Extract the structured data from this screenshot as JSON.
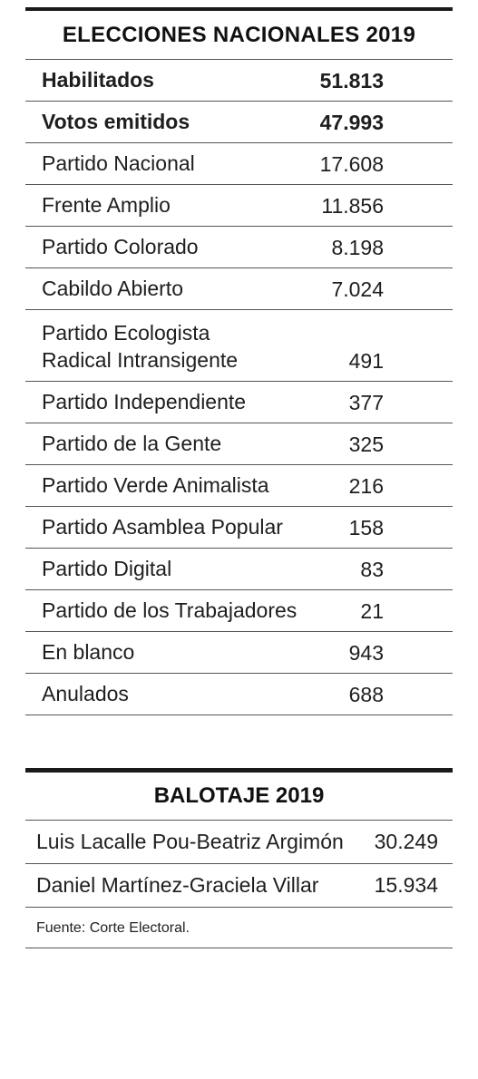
{
  "nacionales": {
    "title": "ELECCIONES NACIONALES 2019",
    "rows": [
      {
        "label": "Habilitados",
        "value": "51.813"
      },
      {
        "label": "Votos emitidos",
        "value": "47.993"
      },
      {
        "label": "Partido Nacional",
        "value": "17.608"
      },
      {
        "label": "Frente Amplio",
        "value": "11.856"
      },
      {
        "label": "Partido Colorado",
        "value": "8.198"
      },
      {
        "label": "Cabildo Abierto",
        "value": "7.024"
      },
      {
        "label": "Partido Ecologista",
        "label2": "Radical Intransigente",
        "value": "491"
      },
      {
        "label": "Partido Independiente",
        "value": "377"
      },
      {
        "label": "Partido de la Gente",
        "value": "325"
      },
      {
        "label": "Partido Verde Animalista",
        "value": "216"
      },
      {
        "label": "Partido Asamblea Popular",
        "value": "158"
      },
      {
        "label": "Partido Digital",
        "value": "83"
      },
      {
        "label": "Partido de los Trabajadores",
        "value": "21"
      },
      {
        "label": "En blanco",
        "value": "943"
      },
      {
        "label": "Anulados",
        "value": "688"
      }
    ]
  },
  "balotaje": {
    "title": "BALOTAJE 2019",
    "rows": [
      {
        "label": "Luis Lacalle Pou-Beatriz Argimón",
        "value": "30.249"
      },
      {
        "label": "Daniel Martínez-Graciela Villar",
        "value": "15.934"
      }
    ],
    "source": "Fuente: Corte Electoral."
  }
}
